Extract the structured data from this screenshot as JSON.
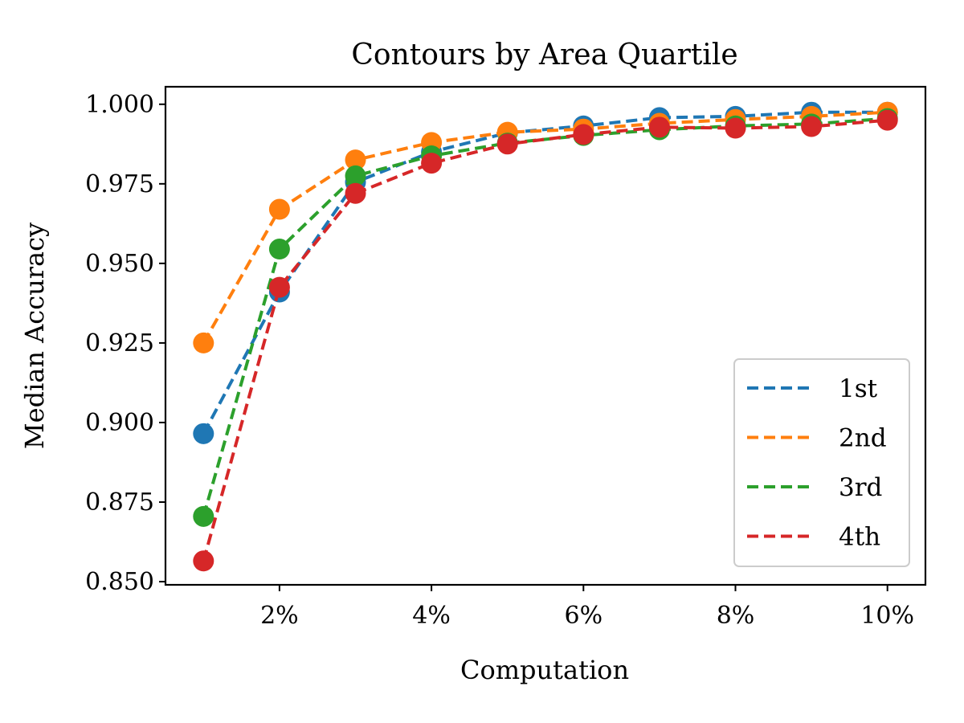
{
  "chart_data": {
    "type": "line",
    "title": "Contours by Area Quartile",
    "xlabel": "Computation",
    "ylabel": "Median Accuracy",
    "x": [
      1,
      2,
      3,
      4,
      5,
      6,
      7,
      8,
      9,
      10
    ],
    "xlim": [
      0.5,
      10.5
    ],
    "ylim": [
      0.849,
      1.0055
    ],
    "xticks": [
      2,
      4,
      6,
      8,
      10
    ],
    "xtick_labels": [
      "2%",
      "4%",
      "6%",
      "8%",
      "10%"
    ],
    "yticks": [
      0.85,
      0.875,
      0.9,
      0.925,
      0.95,
      0.975,
      1.0
    ],
    "ytick_labels": [
      "0.850",
      "0.875",
      "0.900",
      "0.925",
      "0.950",
      "0.975",
      "1.000"
    ],
    "grid": false,
    "legend_position": "lower-right",
    "series": [
      {
        "name": "1st",
        "color": "#1f77b4",
        "values": [
          0.8965,
          0.941,
          0.9755,
          0.985,
          0.991,
          0.9932,
          0.9958,
          0.9962,
          0.9975,
          0.9975
        ]
      },
      {
        "name": "2nd",
        "color": "#ff7f0e",
        "values": [
          0.925,
          0.967,
          0.9825,
          0.988,
          0.9912,
          0.9922,
          0.994,
          0.9952,
          0.9962,
          0.9975
        ]
      },
      {
        "name": "3rd",
        "color": "#2ca02c",
        "values": [
          0.8705,
          0.9545,
          0.9775,
          0.9838,
          0.9878,
          0.9902,
          0.992,
          0.9932,
          0.9938,
          0.9955
        ]
      },
      {
        "name": "4th",
        "color": "#d62728",
        "values": [
          0.8565,
          0.9425,
          0.972,
          0.9815,
          0.9875,
          0.9905,
          0.9928,
          0.9925,
          0.993,
          0.995
        ]
      }
    ]
  }
}
